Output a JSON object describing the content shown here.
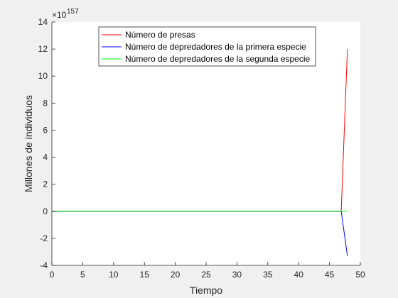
{
  "chart_data": {
    "type": "line",
    "xlabel": "Tiempo",
    "ylabel": "Millones de individuos",
    "y_exponent": "157",
    "xlim": [
      0,
      50
    ],
    "ylim": [
      -4,
      14
    ],
    "xticks": [
      0,
      5,
      10,
      15,
      20,
      25,
      30,
      35,
      40,
      45,
      50
    ],
    "yticks": [
      -4,
      -2,
      0,
      2,
      4,
      6,
      8,
      10,
      12,
      14
    ],
    "grid": false,
    "legend_position": "top-center",
    "series": [
      {
        "name": "Número de presas",
        "color": "#ff0000",
        "x": [
          0,
          46.9,
          47.9
        ],
        "y": [
          0,
          0,
          12
        ]
      },
      {
        "name": "Número de depredadores de la primera especie",
        "color": "#0000ff",
        "x": [
          0,
          46.9,
          47.9
        ],
        "y": [
          0,
          0,
          -3.3
        ]
      },
      {
        "name": "Número de depredadores de la segunda especie",
        "color": "#00ff00",
        "x": [
          0,
          46.9,
          47.9
        ],
        "y": [
          0,
          0,
          0
        ]
      }
    ]
  }
}
